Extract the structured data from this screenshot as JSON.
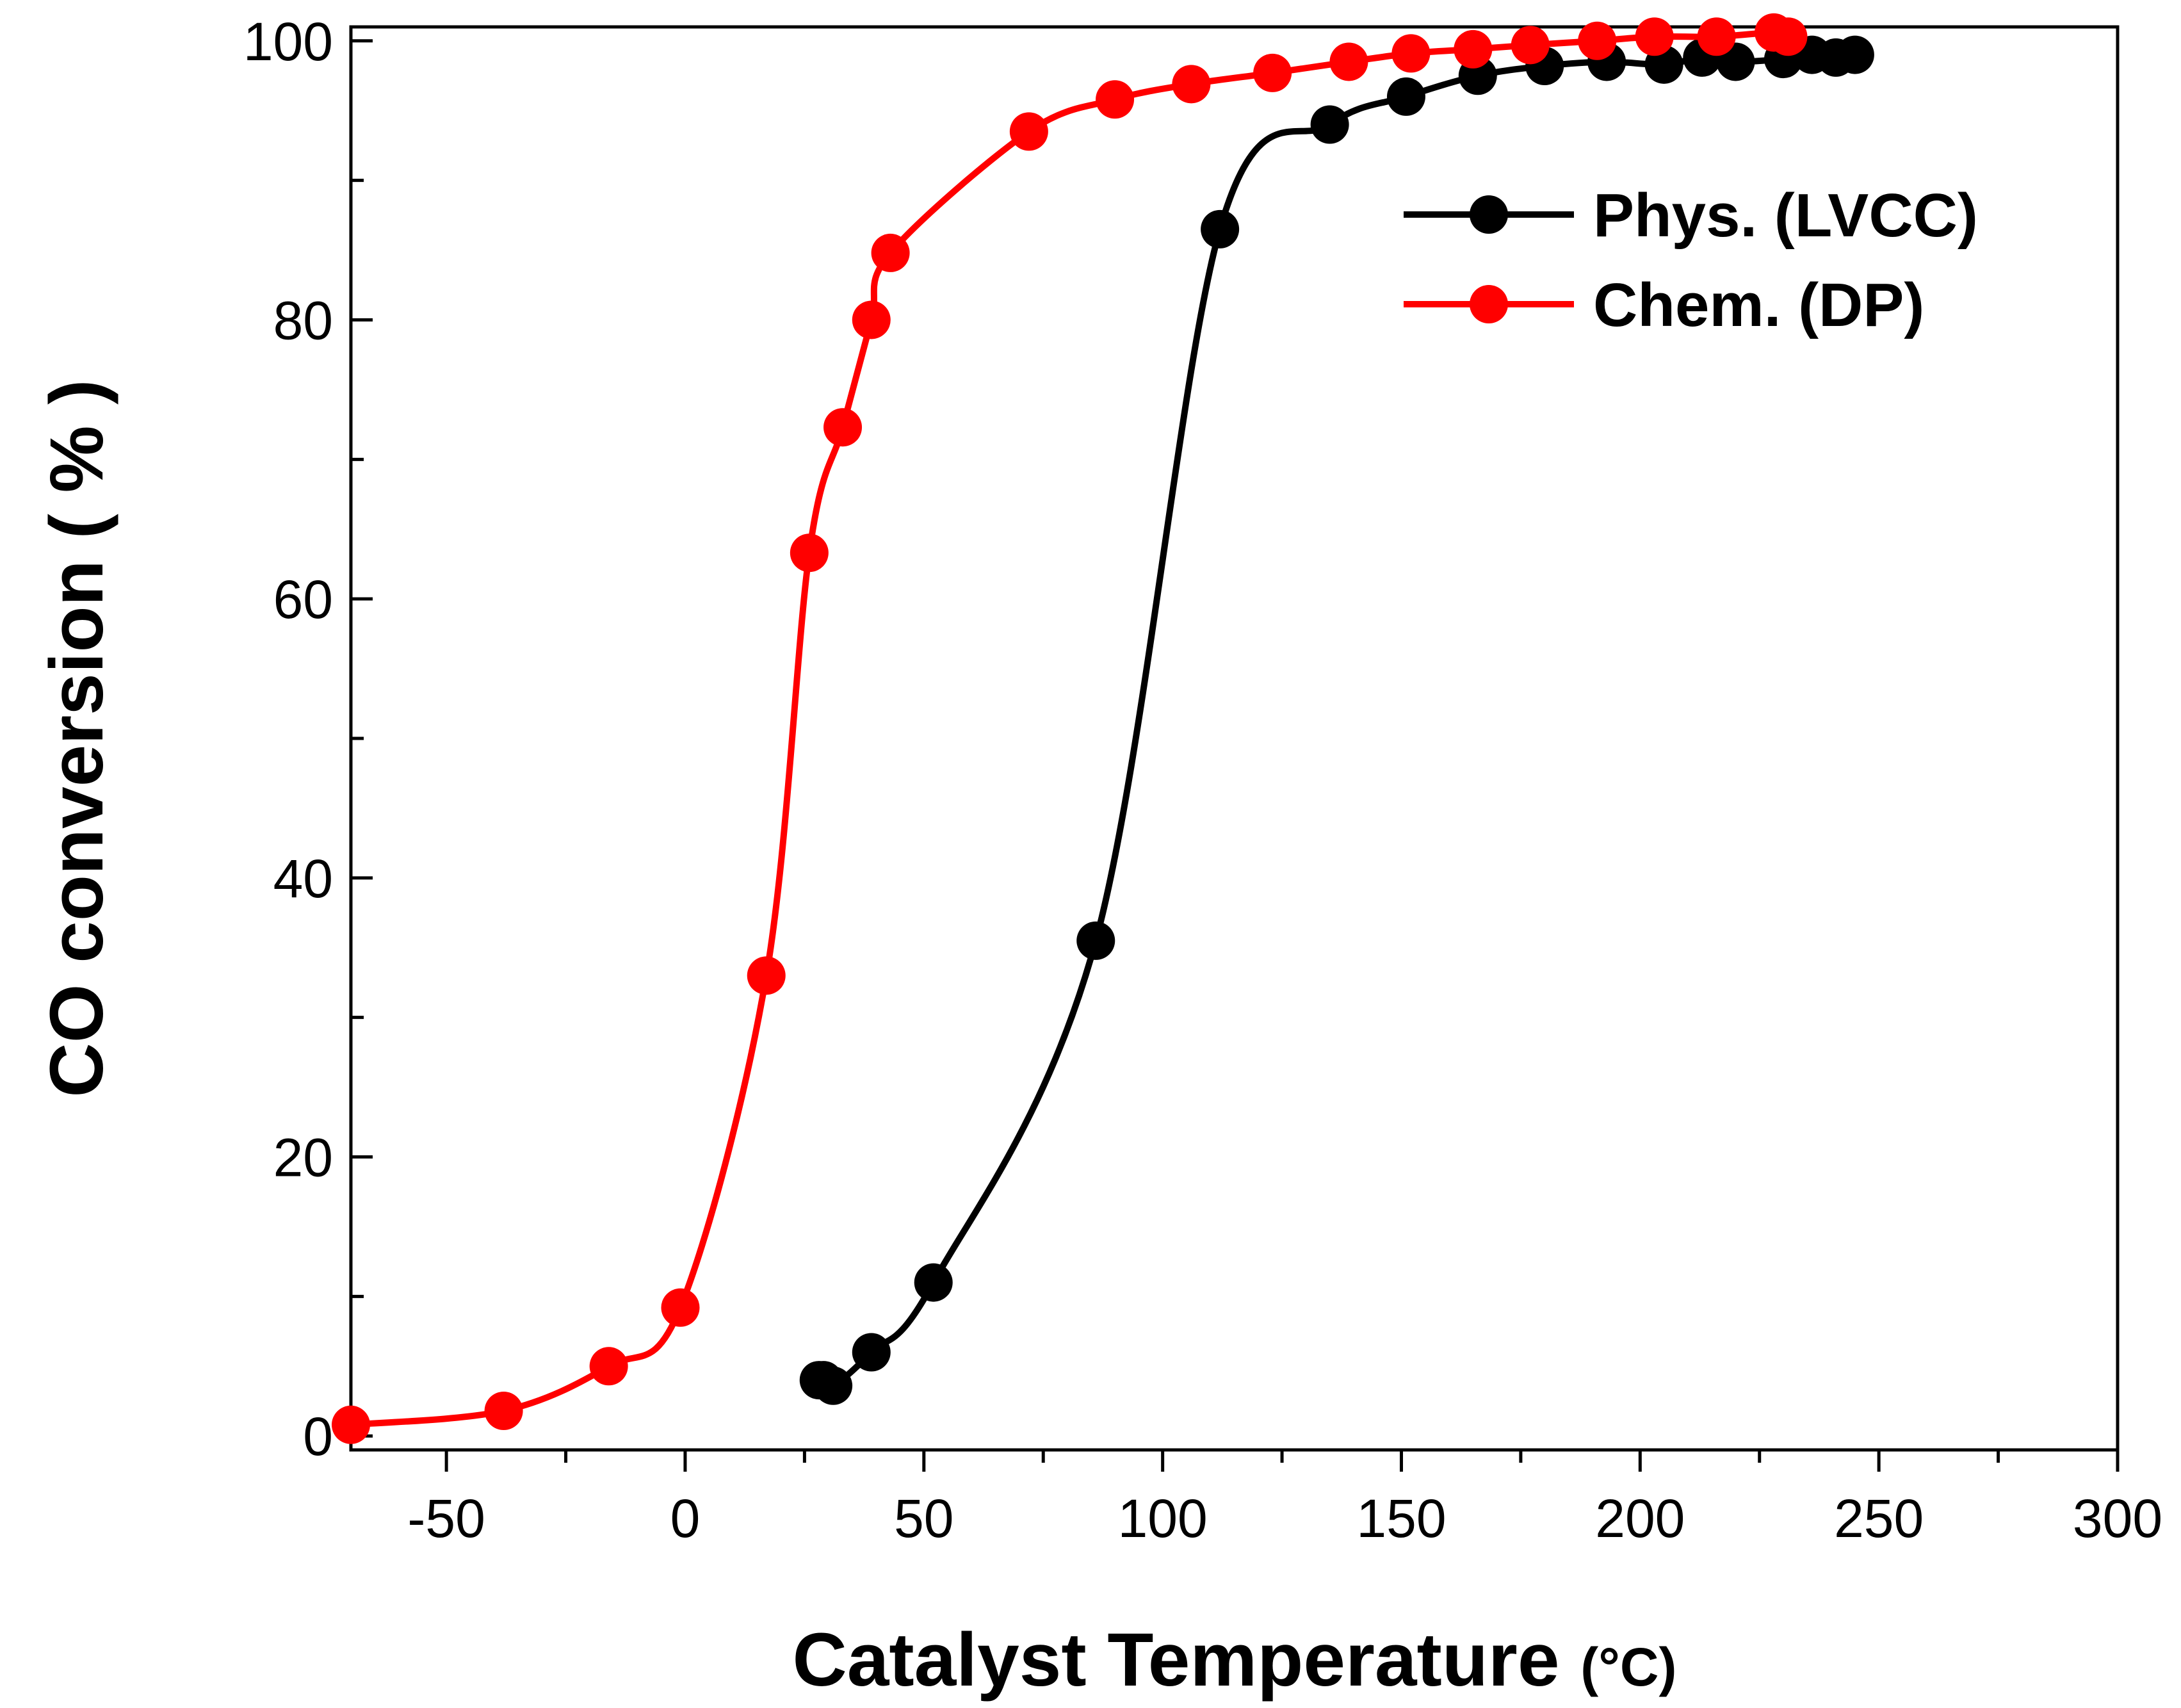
{
  "chart_data": {
    "type": "line",
    "title": "",
    "xlabel_main": "Catalyst Temperature ",
    "xlabel_unit": "(°C)",
    "ylabel_main": "CO conversion ",
    "ylabel_unit": "( % )",
    "xlim": [
      -70,
      300
    ],
    "ylim": [
      -1,
      101
    ],
    "xticks": [
      -50,
      0,
      50,
      100,
      150,
      200,
      250,
      300
    ],
    "xtick_labels": [
      "-50",
      "0",
      "50",
      "100",
      "150",
      "200",
      "250",
      "300"
    ],
    "yticks": [
      0,
      20,
      40,
      60,
      80,
      100
    ],
    "ytick_labels": [
      "0",
      "20",
      "40",
      "60",
      "80",
      "100"
    ],
    "legend_position": "top-right",
    "series": [
      {
        "name": "Phys. (LVCC)",
        "color": "#000000",
        "x": [
          28,
          29,
          31,
          39,
          52,
          86,
          112,
          135,
          151,
          166,
          180,
          193,
          205,
          213,
          220,
          230,
          236,
          241,
          245
        ],
        "y": [
          4,
          4,
          3.6,
          6,
          11,
          35.5,
          86.5,
          94,
          96,
          97.5,
          98.2,
          98.5,
          98.3,
          98.8,
          98.5,
          98.7,
          99,
          98.8,
          99
        ]
      },
      {
        "name": "Chem. (DP)",
        "color": "#ff0000",
        "x": [
          -70,
          -38,
          -16,
          -1,
          17,
          26,
          33,
          39,
          43,
          72,
          90,
          106,
          123,
          139,
          152,
          165,
          177,
          191,
          203,
          216,
          228,
          231
        ],
        "y": [
          0.8,
          1.8,
          5,
          9.2,
          33,
          63.3,
          72.3,
          80,
          84.8,
          93.5,
          95.8,
          96.9,
          97.7,
          98.5,
          99.1,
          99.4,
          99.7,
          100,
          100.3,
          100.3,
          100.6,
          100.3
        ]
      }
    ]
  }
}
